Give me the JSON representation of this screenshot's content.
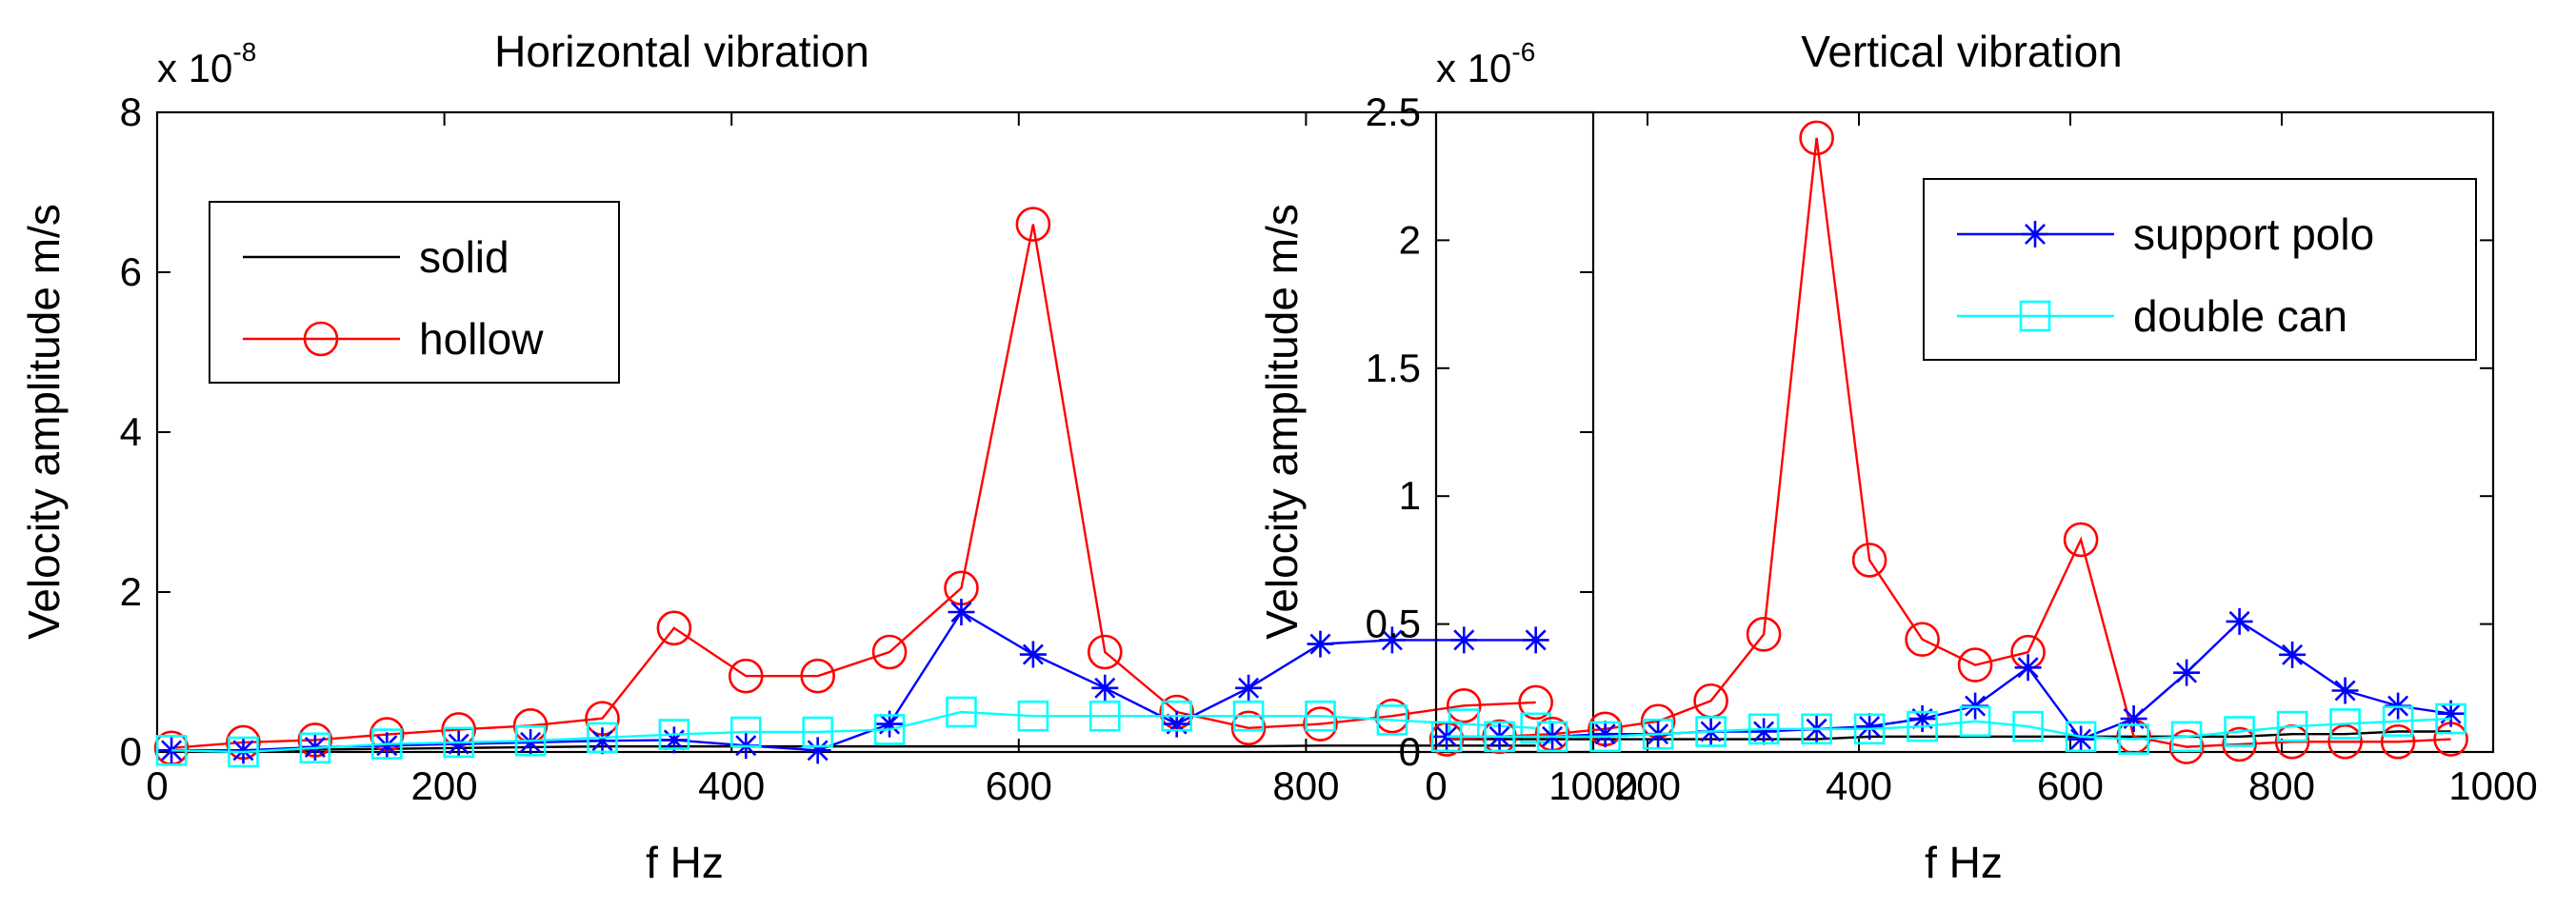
{
  "colors": {
    "solid": "#000000",
    "hollow": "#ff0000",
    "support_polo": "#0000ff",
    "double_can": "#00ffff"
  },
  "chart_data": [
    {
      "type": "line",
      "title": "Horizontal vibration",
      "xlabel": "f Hz",
      "ylabel": "Velocity amplitude m/s",
      "exponent_base": "x 10",
      "exponent_power": "-8",
      "xlim": [
        0,
        1000
      ],
      "ylim": [
        0,
        8
      ],
      "xticks": [
        "0",
        "200",
        "400",
        "600",
        "800",
        "1000"
      ],
      "xtick_values": [
        0,
        200,
        400,
        600,
        800,
        1000
      ],
      "yticks": [
        "0",
        "2",
        "4",
        "6",
        "8"
      ],
      "ytick_values": [
        0,
        2,
        4,
        6,
        8
      ],
      "grid": false,
      "legend_position": "upper-left",
      "legend_series": [
        0,
        1
      ],
      "x": [
        10,
        60,
        110,
        160,
        210,
        260,
        310,
        360,
        410,
        460,
        510,
        560,
        610,
        660,
        710,
        760,
        810,
        860,
        910,
        960
      ],
      "series": [
        {
          "name": "solid",
          "color_key": "solid",
          "marker": "none",
          "values": [
            0.02,
            0.02,
            0.03,
            0.04,
            0.05,
            0.06,
            0.07,
            0.07,
            0.07,
            0.07,
            0.07,
            0.07,
            0.07,
            0.07,
            0.07,
            0.07,
            0.08,
            0.08,
            0.08,
            0.08
          ]
        },
        {
          "name": "hollow",
          "color_key": "hollow",
          "marker": "circle",
          "values": [
            0.05,
            0.12,
            0.15,
            0.22,
            0.28,
            0.33,
            0.42,
            1.55,
            0.95,
            0.95,
            1.25,
            2.05,
            6.6,
            1.25,
            0.5,
            0.3,
            0.35,
            0.45,
            0.58,
            0.62
          ]
        },
        {
          "name": "support polo",
          "color_key": "support_polo",
          "marker": "star",
          "values": [
            0.02,
            0.02,
            0.06,
            0.08,
            0.1,
            0.12,
            0.14,
            0.15,
            0.08,
            0.02,
            0.35,
            1.75,
            1.22,
            0.8,
            0.35,
            0.8,
            1.35,
            1.4,
            1.4,
            1.4
          ]
        },
        {
          "name": "double can",
          "color_key": "double_can",
          "marker": "square",
          "values": [
            0.02,
            0.0,
            0.05,
            0.1,
            0.12,
            0.14,
            0.18,
            0.22,
            0.25,
            0.25,
            0.28,
            0.5,
            0.45,
            0.45,
            0.45,
            0.45,
            0.45,
            0.4,
            0.35,
            0.3
          ]
        }
      ]
    },
    {
      "type": "line",
      "title": "Vertical vibration",
      "xlabel": "f Hz",
      "ylabel": "Velocity amplitude m/s",
      "exponent_base": "x 10",
      "exponent_power": "-6",
      "xlim": [
        0,
        1000
      ],
      "ylim": [
        0,
        2.5
      ],
      "xticks": [
        "0",
        "200",
        "400",
        "600",
        "800",
        "1000"
      ],
      "xtick_values": [
        0,
        200,
        400,
        600,
        800,
        1000
      ],
      "yticks": [
        "0",
        "0.5",
        "1",
        "1.5",
        "2",
        "2.5"
      ],
      "ytick_values": [
        0,
        0.5,
        1,
        1.5,
        2,
        2.5
      ],
      "grid": false,
      "legend_position": "upper-right",
      "legend_series": [
        2,
        3
      ],
      "x": [
        10,
        60,
        110,
        160,
        210,
        260,
        310,
        360,
        410,
        460,
        510,
        560,
        610,
        660,
        710,
        760,
        810,
        860,
        910,
        960
      ],
      "series": [
        {
          "name": "solid",
          "color_key": "solid",
          "marker": "none",
          "values": [
            0.05,
            0.05,
            0.05,
            0.05,
            0.05,
            0.05,
            0.05,
            0.05,
            0.06,
            0.06,
            0.06,
            0.06,
            0.06,
            0.06,
            0.06,
            0.06,
            0.07,
            0.07,
            0.08,
            0.08
          ]
        },
        {
          "name": "hollow",
          "color_key": "hollow",
          "marker": "circle",
          "values": [
            0.05,
            0.06,
            0.07,
            0.09,
            0.12,
            0.2,
            0.46,
            2.4,
            0.75,
            0.44,
            0.34,
            0.39,
            0.83,
            0.06,
            0.02,
            0.03,
            0.04,
            0.04,
            0.04,
            0.05
          ]
        },
        {
          "name": "support polo",
          "color_key": "support_polo",
          "marker": "star",
          "values": [
            0.06,
            0.06,
            0.06,
            0.07,
            0.07,
            0.08,
            0.08,
            0.09,
            0.1,
            0.13,
            0.18,
            0.33,
            0.05,
            0.13,
            0.31,
            0.51,
            0.38,
            0.24,
            0.18,
            0.15
          ]
        },
        {
          "name": "double can",
          "color_key": "double_can",
          "marker": "square",
          "values": [
            0.06,
            0.06,
            0.06,
            0.06,
            0.07,
            0.08,
            0.09,
            0.09,
            0.09,
            0.1,
            0.12,
            0.1,
            0.06,
            0.05,
            0.06,
            0.08,
            0.1,
            0.11,
            0.12,
            0.13
          ]
        }
      ]
    }
  ]
}
